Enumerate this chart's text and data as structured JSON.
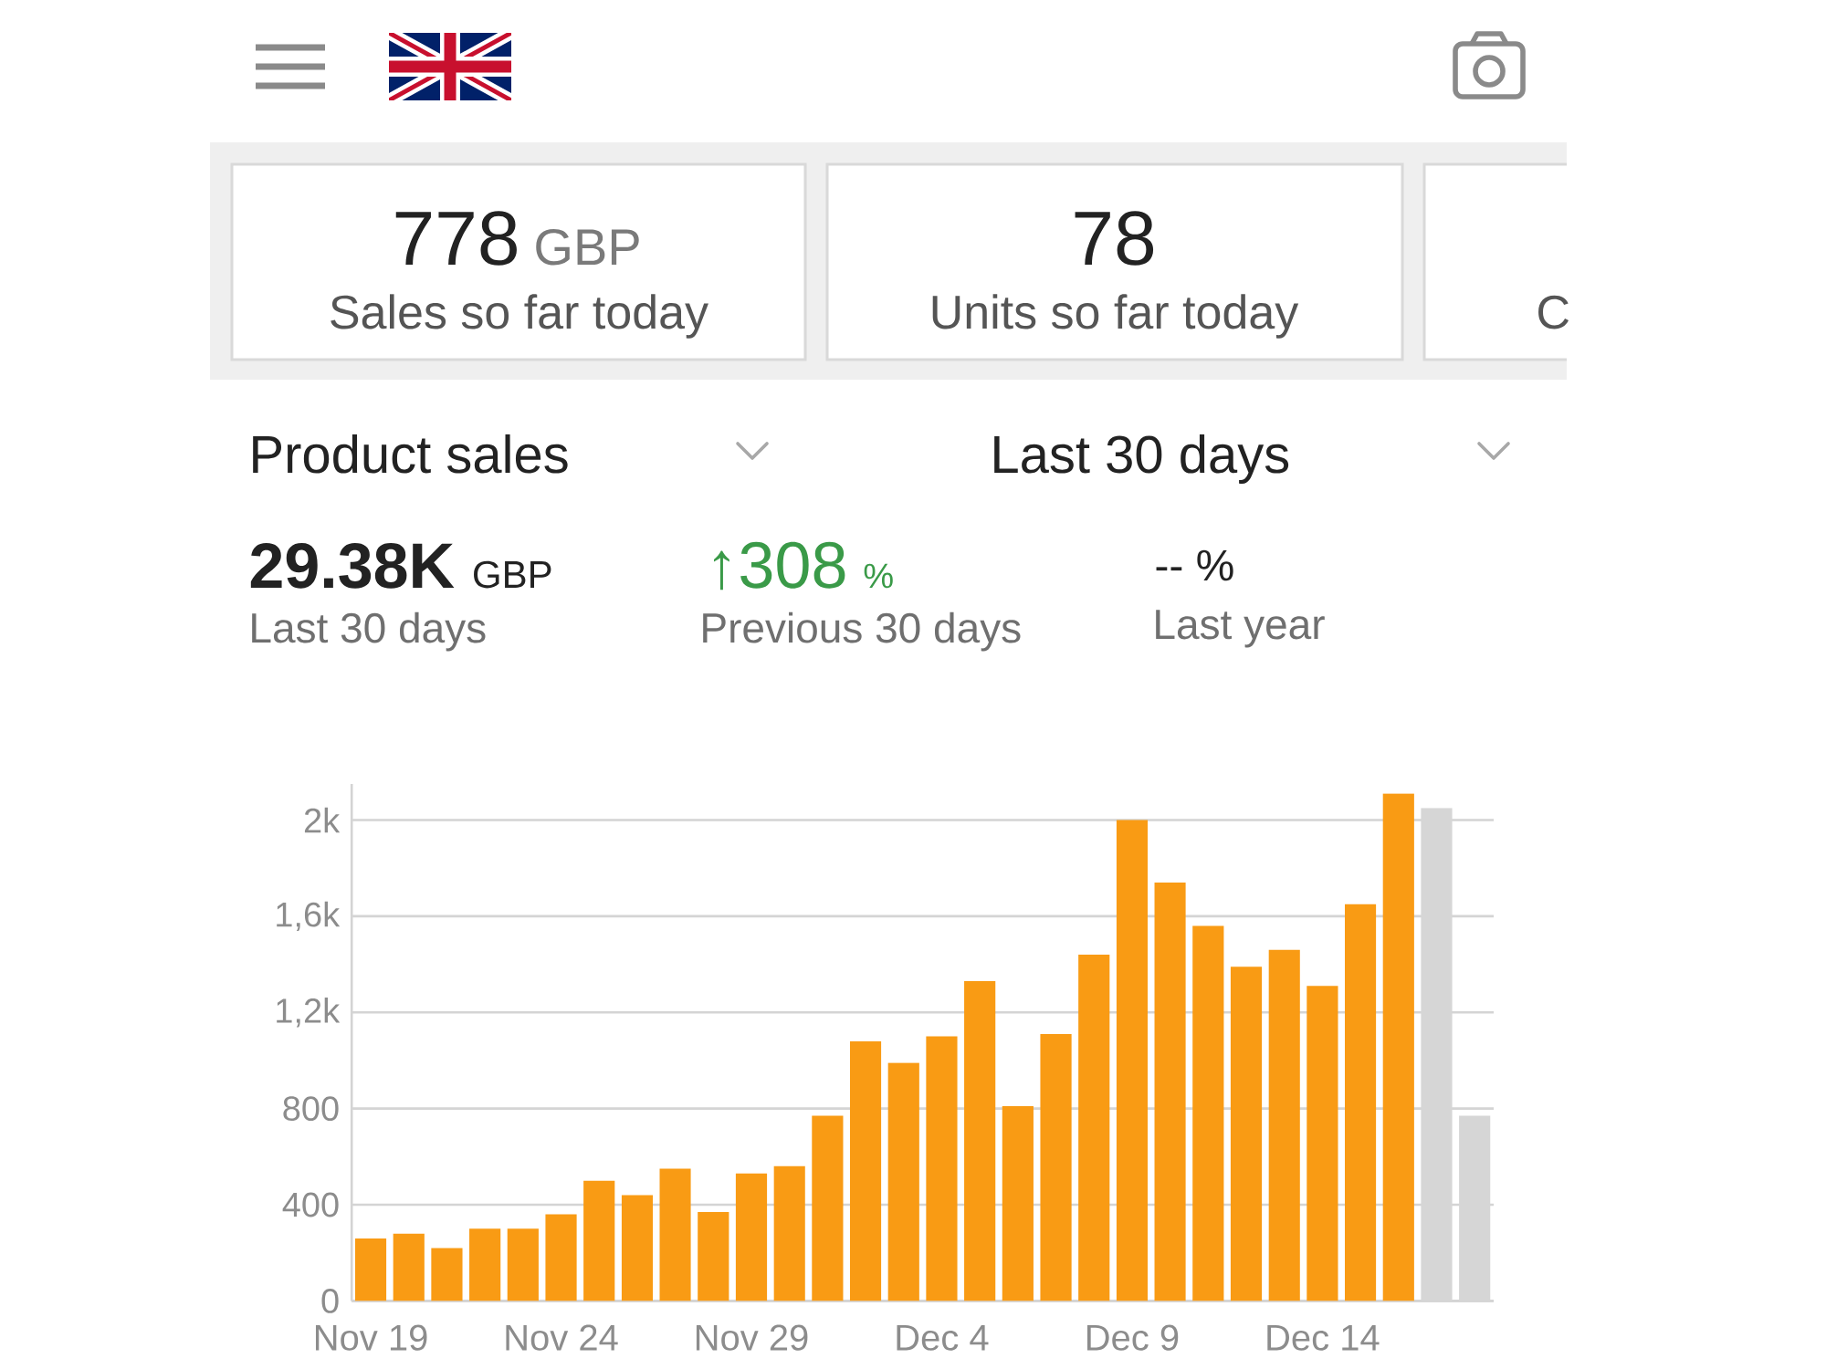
{
  "chart_data": {
    "type": "bar",
    "title": "Product sales",
    "subtitle": "Last 30 days",
    "annotations": [
      "778",
      "GBP",
      "Sales so far today",
      "78",
      "Units so far today",
      "C",
      "29.38K",
      "GBP",
      "Last 30 days",
      "↑308",
      "%",
      "Previous 30 days",
      "-- %",
      "Last year"
    ],
    "categories": [
      "Nov 19",
      null,
      null,
      null,
      null,
      "Nov 24",
      null,
      null,
      null,
      null,
      "Nov 29",
      null,
      null,
      null,
      null,
      "Dec 4",
      null,
      null,
      null,
      null,
      "Dec 9",
      null,
      null,
      null,
      null,
      "Dec 14",
      null,
      null,
      null,
      null
    ],
    "values": [
      260,
      280,
      220,
      300,
      300,
      360,
      500,
      440,
      550,
      370,
      530,
      560,
      770,
      1080,
      990,
      1100,
      1330,
      810,
      1110,
      1440,
      2000,
      1740,
      1560,
      1390,
      1460,
      1310,
      1650,
      2110,
      2050,
      770
    ],
    "colors": [
      "#f99b14",
      "#f99b14",
      "#f99b14",
      "#f99b14",
      "#f99b14",
      "#f99b14",
      "#f99b14",
      "#f99b14",
      "#f99b14",
      "#f99b14",
      "#f99b14",
      "#f99b14",
      "#f99b14",
      "#f99b14",
      "#f99b14",
      "#f99b14",
      "#f99b14",
      "#f99b14",
      "#f99b14",
      "#f99b14",
      "#f99b14",
      "#f99b14",
      "#f99b14",
      "#f99b14",
      "#f99b14",
      "#f99b14",
      "#f99b14",
      "#f99b14",
      "#d6d6d6",
      "#d6d6d6"
    ],
    "ylim": [
      0,
      2150
    ],
    "yticks": [
      0,
      400,
      800,
      {
        "value": 1200,
        "label": "1,2k"
      },
      {
        "value": 1600,
        "label": "1,6k"
      },
      {
        "value": 2000,
        "label": "2k"
      }
    ],
    "grid": "y"
  }
}
